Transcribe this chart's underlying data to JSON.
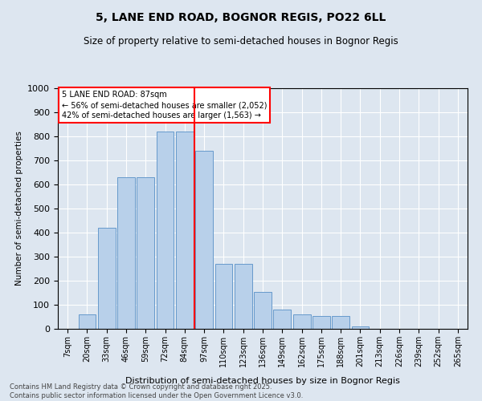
{
  "title1": "5, LANE END ROAD, BOGNOR REGIS, PO22 6LL",
  "title2": "Size of property relative to semi-detached houses in Bognor Regis",
  "xlabel": "Distribution of semi-detached houses by size in Bognor Regis",
  "ylabel": "Number of semi-detached properties",
  "categories": [
    "7sqm",
    "20sqm",
    "33sqm",
    "46sqm",
    "59sqm",
    "72sqm",
    "84sqm",
    "97sqm",
    "110sqm",
    "123sqm",
    "136sqm",
    "149sqm",
    "162sqm",
    "175sqm",
    "188sqm",
    "201sqm",
    "213sqm",
    "226sqm",
    "239sqm",
    "252sqm",
    "265sqm"
  ],
  "values": [
    0,
    60,
    420,
    630,
    630,
    820,
    820,
    740,
    270,
    270,
    155,
    80,
    60,
    55,
    55,
    10,
    0,
    0,
    0,
    0,
    0
  ],
  "bar_color": "#b8d0ea",
  "bar_edge_color": "#6699cc",
  "background_color": "#dde6f0",
  "grid_color": "#ffffff",
  "property_line_x": 6.5,
  "annotation_text_line1": "5 LANE END ROAD: 87sqm",
  "annotation_text_line2": "← 56% of semi-detached houses are smaller (2,052)",
  "annotation_text_line3": "42% of semi-detached houses are larger (1,563) →",
  "ylim": [
    0,
    1000
  ],
  "footnote1": "Contains HM Land Registry data © Crown copyright and database right 2025.",
  "footnote2": "Contains public sector information licensed under the Open Government Licence v3.0."
}
